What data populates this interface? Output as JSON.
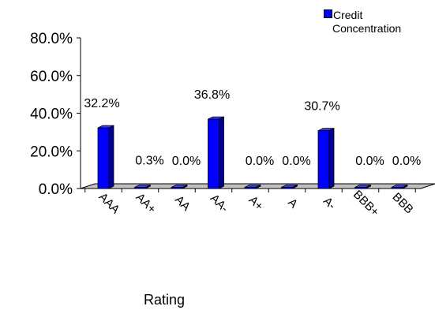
{
  "chart_data": {
    "type": "bar",
    "categories": [
      "AAA",
      "AA+",
      "AA",
      "AA-",
      "A+",
      "A",
      "A-",
      "BBB+",
      "BBB"
    ],
    "series": [
      {
        "name": "Credit Concentration",
        "values": [
          32.2,
          0.3,
          0.0,
          36.8,
          0.0,
          0.0,
          30.7,
          0.0,
          0.0
        ],
        "color": "#0000ff"
      }
    ],
    "data_labels": [
      "32.2%",
      "0.3%",
      "0.0%",
      "36.8%",
      "0.0%",
      "0.0%",
      "30.7%",
      "0.0%",
      "0.0%"
    ],
    "yticks": [
      "0.0%",
      "20.0%",
      "40.0%",
      "60.0%",
      "80.0%"
    ],
    "ytick_values": [
      0,
      20,
      40,
      60,
      80
    ],
    "ylim": [
      0,
      80
    ],
    "xlabel": "Rating",
    "ylabel": "",
    "legend": {
      "line1": "Credit",
      "line2": "Concentration",
      "position": "top-right"
    },
    "grid": false,
    "style_3d": true
  }
}
